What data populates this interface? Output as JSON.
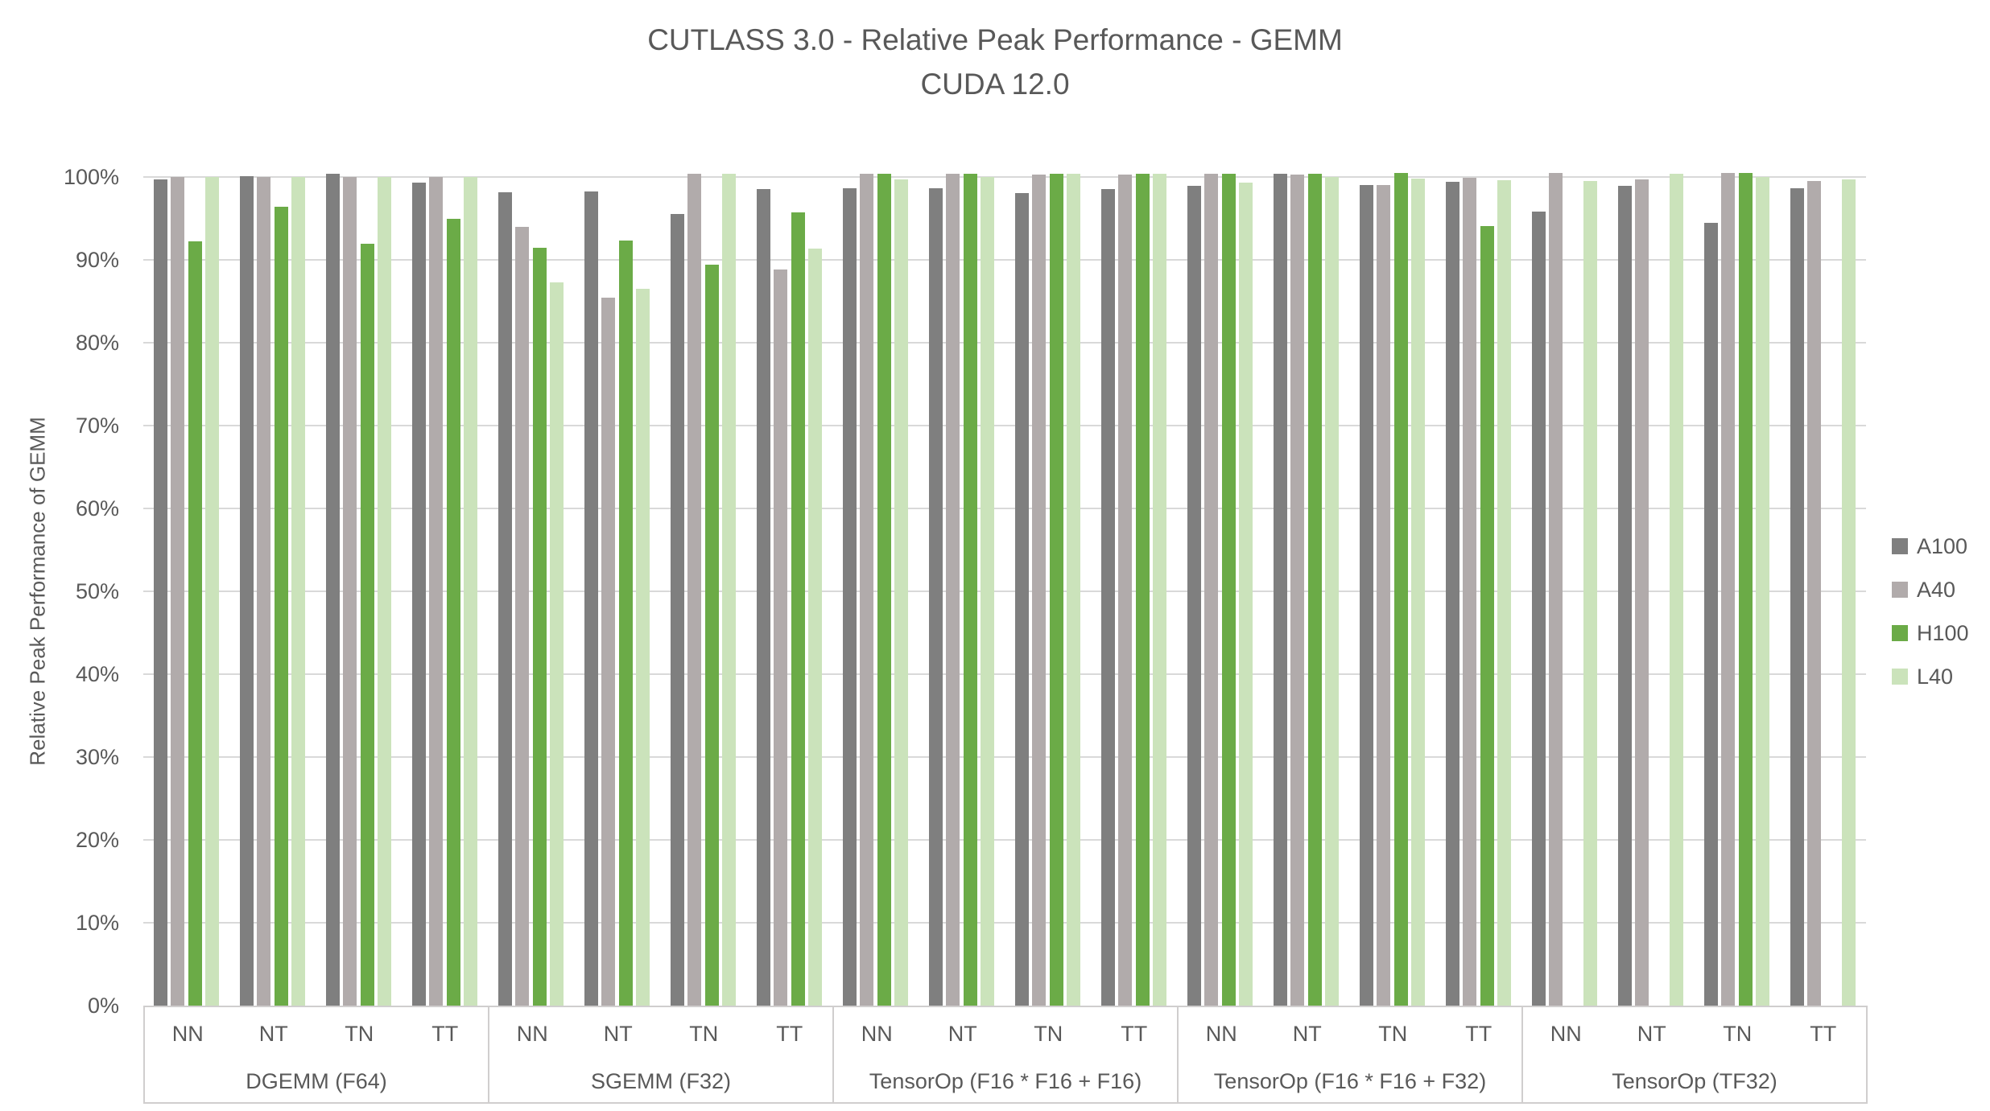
{
  "chart_data": {
    "type": "bar",
    "title": "CUTLASS 3.0 - Relative Peak Performance - GEMM",
    "subtitle": "CUDA 12.0",
    "ylabel": "Relative Peak Performance of GEMM",
    "xlabel": "",
    "ylim": [
      0,
      100
    ],
    "y_tick_step": 10,
    "y_tick_labels": [
      "0%",
      "10%",
      "20%",
      "30%",
      "40%",
      "50%",
      "60%",
      "70%",
      "80%",
      "90%",
      "100%"
    ],
    "grid": true,
    "legend_position": "right",
    "value_unit": "percent",
    "series": [
      {
        "name": "A100",
        "color": "#7f7f7f"
      },
      {
        "name": "A40",
        "color": "#b1abab"
      },
      {
        "name": "H100",
        "color": "#6bab47"
      },
      {
        "name": "L40",
        "color": "#cbe3bb"
      }
    ],
    "groups": [
      {
        "label": "DGEMM (F64)",
        "clusters": [
          {
            "label": "NN",
            "values": [
              99.7,
              100.0,
              92.2,
              100.0
            ]
          },
          {
            "label": "NT",
            "values": [
              100.1,
              100.0,
              96.4,
              100.0
            ]
          },
          {
            "label": "TN",
            "values": [
              100.4,
              100.0,
              91.9,
              100.0
            ]
          },
          {
            "label": "TT",
            "values": [
              99.3,
              100.0,
              95.0,
              100.0
            ]
          }
        ]
      },
      {
        "label": "SGEMM (F32)",
        "clusters": [
          {
            "label": "NN",
            "values": [
              98.2,
              94.0,
              91.5,
              87.3
            ]
          },
          {
            "label": "NT",
            "values": [
              98.3,
              85.4,
              92.3,
              86.5
            ]
          },
          {
            "label": "TN",
            "values": [
              95.5,
              100.4,
              89.4,
              100.4
            ]
          },
          {
            "label": "TT",
            "values": [
              98.5,
              88.8,
              95.7,
              91.4
            ]
          }
        ]
      },
      {
        "label": "TensorOp (F16 * F16 + F16)",
        "clusters": [
          {
            "label": "NN",
            "values": [
              98.6,
              100.4,
              100.4,
              99.7
            ]
          },
          {
            "label": "NT",
            "values": [
              98.6,
              100.4,
              100.4,
              100.0
            ]
          },
          {
            "label": "TN",
            "values": [
              98.1,
              100.3,
              100.4,
              100.4
            ]
          },
          {
            "label": "TT",
            "values": [
              98.5,
              100.3,
              100.4,
              100.4
            ]
          }
        ]
      },
      {
        "label": "TensorOp (F16 * F16 + F32)",
        "clusters": [
          {
            "label": "NN",
            "values": [
              98.9,
              100.4,
              100.4,
              99.3
            ]
          },
          {
            "label": "NT",
            "values": [
              100.4,
              100.3,
              100.4,
              100.0
            ]
          },
          {
            "label": "TN",
            "values": [
              99.0,
              99.0,
              100.5,
              99.8
            ]
          },
          {
            "label": "TT",
            "values": [
              99.4,
              99.9,
              94.1,
              99.6
            ]
          }
        ]
      },
      {
        "label": "TensorOp (TF32)",
        "clusters": [
          {
            "label": "NN",
            "values": [
              95.8,
              100.5,
              null,
              99.5
            ]
          },
          {
            "label": "NT",
            "values": [
              98.9,
              99.7,
              null,
              100.4
            ]
          },
          {
            "label": "TN",
            "values": [
              94.5,
              100.5,
              100.5,
              100.0
            ]
          },
          {
            "label": "TT",
            "values": [
              98.6,
              99.5,
              null,
              99.7
            ]
          }
        ]
      }
    ],
    "style": {
      "grid_color": "#d9d9d9",
      "axis_line_color": "#d0cece",
      "text_color": "#595959",
      "background": "#ffffff"
    }
  }
}
